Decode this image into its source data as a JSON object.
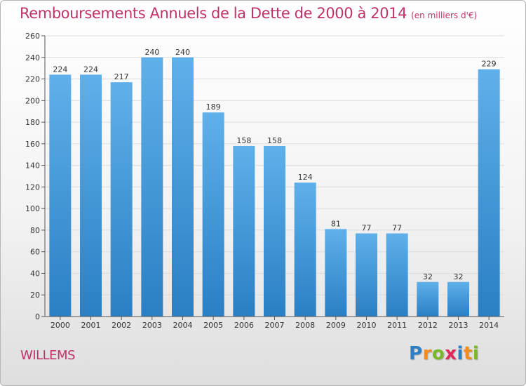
{
  "title": "Remboursements Annuels de la Dette de 2000 à 2014",
  "unit_note": "(en milliers d'€)",
  "commune": "WILLEMS",
  "logo": {
    "letters": [
      "P",
      "r",
      "o",
      "x",
      "i",
      "t",
      "i"
    ],
    "colors": [
      "#2d7fc5",
      "#f28c1e",
      "#7ab929",
      "#e0285a",
      "#2d7fc5",
      "#f28c1e",
      "#7ab929"
    ]
  },
  "colors": {
    "title": "#c0326a",
    "bar_light": "#5fb0ea",
    "bar_dark": "#2a7fc4",
    "grid": "#dcdcdc",
    "axis": "#555555",
    "tick_text": "#333333"
  },
  "chart_data": {
    "type": "bar",
    "categories": [
      "2000",
      "2001",
      "2002",
      "2003",
      "2004",
      "2005",
      "2006",
      "2007",
      "2008",
      "2009",
      "2010",
      "2011",
      "2012",
      "2013",
      "2014"
    ],
    "values": [
      224,
      224,
      217,
      240,
      240,
      189,
      158,
      158,
      124,
      81,
      77,
      77,
      32,
      32,
      229
    ],
    "ylim": [
      0,
      260
    ],
    "yticks": [
      0,
      20,
      40,
      60,
      80,
      100,
      120,
      140,
      160,
      180,
      200,
      220,
      240,
      260
    ],
    "grid": true,
    "data_labels": true
  }
}
